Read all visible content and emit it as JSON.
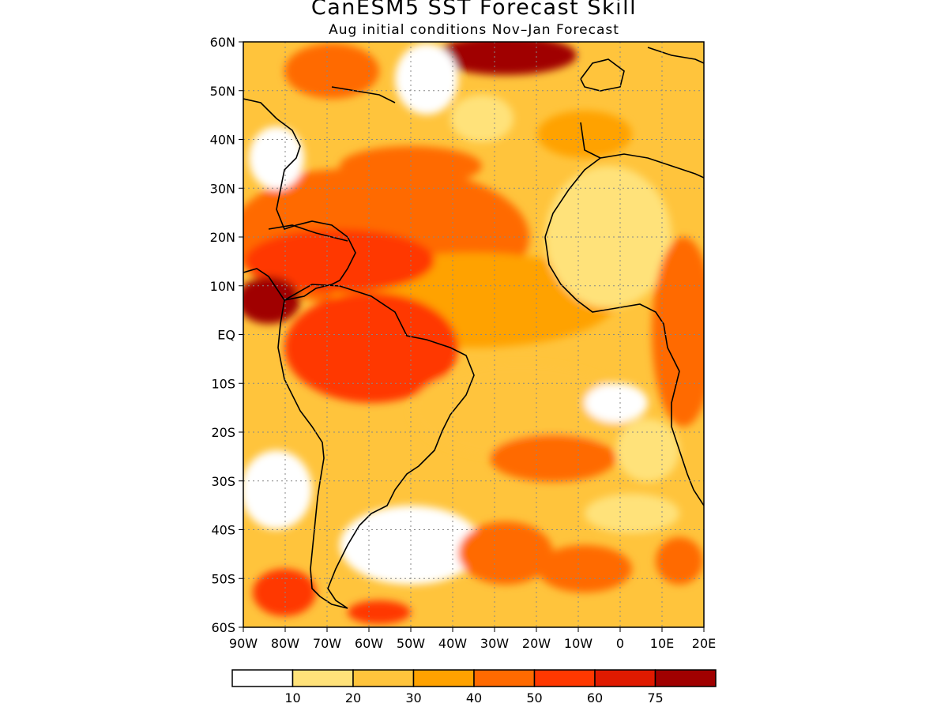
{
  "header": {
    "title": "CanESM5 SST Forecast Skill",
    "subtitle": "Aug initial conditions  Nov–Jan Forecast"
  },
  "map": {
    "region": "Atlantic Ocean",
    "lon_range": [
      -90,
      20
    ],
    "lat_range": [
      -60,
      60
    ],
    "lat_labels": [
      "60N",
      "50N",
      "40N",
      "30N",
      "20N",
      "10N",
      "EQ",
      "10S",
      "20S",
      "30S",
      "40S",
      "50S",
      "60S"
    ],
    "lon_labels": [
      "90W",
      "80W",
      "70W",
      "60W",
      "50W",
      "40W",
      "30W",
      "20W",
      "10W",
      "0",
      "10E",
      "20E"
    ],
    "gridlines": "dotted"
  },
  "colorbar": {
    "labels": [
      "10",
      "20",
      "30",
      "40",
      "50",
      "60",
      "75"
    ],
    "colors": [
      "#ffffff",
      "#ffe27a",
      "#ffc43c",
      "#ffa200",
      "#ff6a00",
      "#ff3800",
      "#e01a00",
      "#a00000"
    ]
  }
}
